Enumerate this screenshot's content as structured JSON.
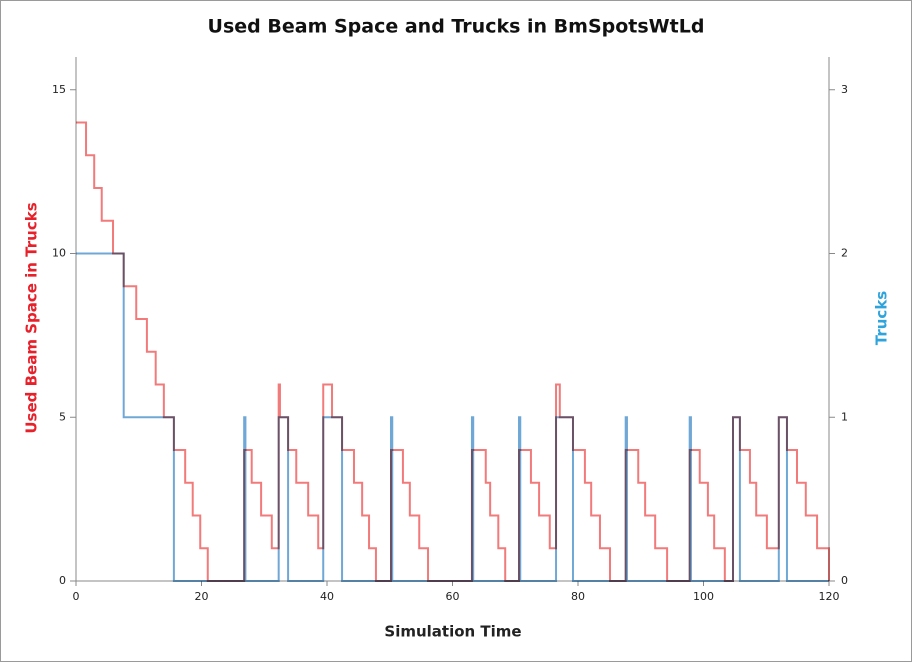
{
  "chart_data": {
    "type": "step",
    "title": "Used Beam Space and Trucks in BmSpotsWtLd",
    "x_label": "Simulation Time",
    "y_label": "Used Beam Space in Trucks",
    "y2_label": "Trucks",
    "y_label_color": "#e8202a",
    "y2_label_color": "#2ea3dc",
    "xlim": [
      0,
      120
    ],
    "xticks": [
      0,
      20,
      40,
      60,
      80,
      100,
      120
    ],
    "ylim": [
      0,
      16
    ],
    "yticks": [
      0,
      5,
      10,
      15
    ],
    "y2lim": [
      0,
      3.2
    ],
    "y2ticks": [
      0,
      1,
      2,
      3
    ],
    "series": [
      {
        "color": "#6fa8d6",
        "axis": "y2",
        "x": [
          0,
          7.6,
          15.6,
          26.8,
          27.0,
          32.3,
          33.8,
          39.4,
          42.4,
          50.2,
          50.4,
          63.1,
          63.3,
          70.6,
          70.8,
          76.5,
          79.2,
          87.6,
          87.8,
          97.8,
          98.0,
          104.7,
          105.8,
          112.0,
          113.3,
          120
        ],
        "values": [
          2,
          1,
          0,
          1,
          0,
          1,
          0,
          1,
          0,
          1,
          0,
          1,
          0,
          1,
          0,
          1,
          0,
          1,
          0,
          1,
          0,
          1,
          0,
          1,
          0,
          0
        ]
      },
      {
        "color": "#f27a7a",
        "x": [
          0,
          1.6,
          2.9,
          4.1,
          5.9,
          7.6,
          9.6,
          11.3,
          12.7,
          14.0,
          15.6,
          17.4,
          18.6,
          19.8,
          21.0,
          26.8,
          28.0,
          29.5,
          31.2,
          32.3,
          32.5,
          33.8,
          35.1,
          37.0,
          38.6,
          39.4,
          40.8,
          42.4,
          44.3,
          45.6,
          46.7,
          47.8,
          50.2,
          52.1,
          53.2,
          54.7,
          56.1,
          63.1,
          65.3,
          66.0,
          67.3,
          68.4,
          70.6,
          72.5,
          73.8,
          75.5,
          76.5,
          77.1,
          79.2,
          81.1,
          82.1,
          83.5,
          85.1,
          87.6,
          89.6,
          90.7,
          92.3,
          94.2,
          97.8,
          99.4,
          100.7,
          101.7,
          103.4,
          104.7,
          105.8,
          107.4,
          108.4,
          110.1,
          112.0,
          113.3,
          114.9,
          116.3,
          118.1,
          120
        ],
        "values": [
          14,
          13,
          12,
          11,
          10,
          9,
          8,
          7,
          6,
          5,
          4,
          3,
          2,
          1,
          0,
          4,
          3,
          2,
          1,
          6,
          5,
          4,
          3,
          2,
          1,
          6,
          5,
          4,
          3,
          2,
          1,
          0,
          4,
          3,
          2,
          1,
          0,
          4,
          3,
          2,
          1,
          0,
          4,
          3,
          2,
          1,
          6,
          5,
          4,
          3,
          2,
          1,
          0,
          4,
          3,
          2,
          1,
          0,
          4,
          3,
          2,
          1,
          0,
          5,
          4,
          3,
          2,
          1,
          5,
          4,
          3,
          2,
          1,
          0
        ]
      }
    ]
  }
}
